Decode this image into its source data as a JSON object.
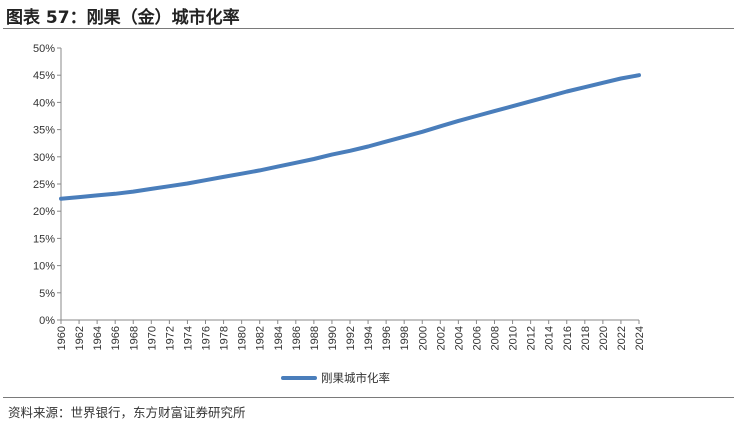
{
  "figure": {
    "title": "图表 57：刚果（金）城市化率",
    "source": "资料来源：世界银行，东方财富证券研究所"
  },
  "colors": {
    "line": "#4a7ebb",
    "axis": "#888888"
  },
  "chart_data": {
    "type": "line",
    "title": "",
    "xlabel": "",
    "ylabel": "",
    "ylim": [
      0,
      50
    ],
    "xlim": [
      1960,
      2024
    ],
    "grid": false,
    "legend": "bottom-center",
    "y_ticks": [
      "0%",
      "5%",
      "10%",
      "15%",
      "20%",
      "25%",
      "30%",
      "35%",
      "40%",
      "45%",
      "50%"
    ],
    "x_ticks": [
      "1960",
      "1962",
      "1964",
      "1966",
      "1968",
      "1970",
      "1972",
      "1974",
      "1976",
      "1978",
      "1980",
      "1982",
      "1984",
      "1986",
      "1988",
      "1990",
      "1992",
      "1994",
      "1996",
      "1998",
      "2000",
      "2002",
      "2004",
      "2006",
      "2008",
      "2010",
      "2012",
      "2014",
      "2016",
      "2018",
      "2020",
      "2022",
      "2024"
    ],
    "series": [
      {
        "name": "刚果城市化率",
        "x": [
          1960,
          1962,
          1964,
          1966,
          1968,
          1970,
          1972,
          1974,
          1976,
          1978,
          1980,
          1982,
          1984,
          1986,
          1988,
          1990,
          1992,
          1994,
          1996,
          1998,
          2000,
          2002,
          2004,
          2006,
          2008,
          2010,
          2012,
          2014,
          2016,
          2018,
          2020,
          2022,
          2024
        ],
        "values": [
          22.3,
          22.6,
          22.9,
          23.2,
          23.6,
          24.1,
          24.6,
          25.1,
          25.7,
          26.3,
          26.9,
          27.5,
          28.2,
          28.9,
          29.6,
          30.4,
          31.1,
          31.9,
          32.8,
          33.7,
          34.6,
          35.6,
          36.6,
          37.5,
          38.4,
          39.3,
          40.2,
          41.1,
          42.0,
          42.8,
          43.6,
          44.4,
          45.0
        ]
      }
    ]
  }
}
